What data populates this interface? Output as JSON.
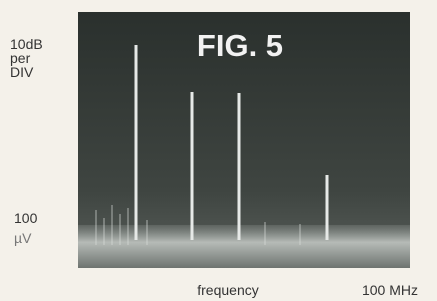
{
  "figure": {
    "title": "FIG. 5",
    "scale_label": [
      "10dB",
      "per",
      "DIV"
    ],
    "reference_label": [
      "100",
      "µV"
    ],
    "x_axis_label": "frequency",
    "x_max_label": "100 MHz"
  }
}
